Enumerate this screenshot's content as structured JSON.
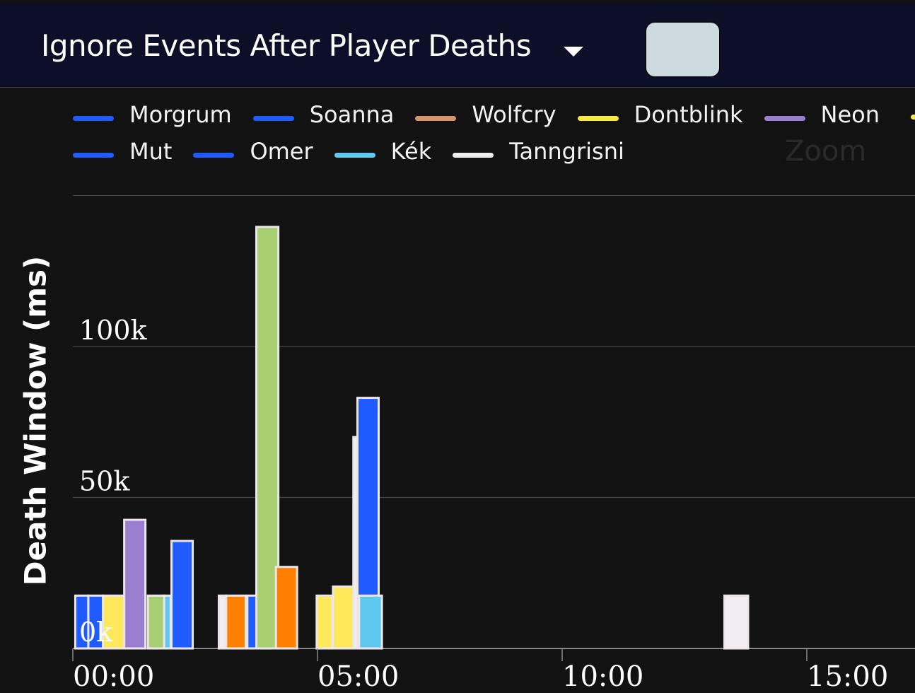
{
  "header": {
    "title": "Ignore Events After Player Deaths",
    "dropdown_icon": "caret-down-icon"
  },
  "zoom_label": "Zoom",
  "chart_data": {
    "type": "bar",
    "ylabel": "Death Window (ms)",
    "xlabel": "",
    "ylim": [
      0,
      150000
    ],
    "xlim_seconds": [
      0,
      1000
    ],
    "yticks": [
      {
        "v": 0,
        "label": "0k"
      },
      {
        "v": 50000,
        "label": "50k"
      },
      {
        "v": 100000,
        "label": "100k"
      }
    ],
    "xticks": [
      {
        "t": 0,
        "label": "00:00"
      },
      {
        "t": 300,
        "label": "05:00"
      },
      {
        "t": 600,
        "label": "10:00"
      },
      {
        "t": 900,
        "label": "15:00"
      }
    ],
    "grid": true,
    "legend": {
      "placement": "top",
      "items": [
        {
          "name": "Morgrum",
          "color": "#1f5bff"
        },
        {
          "name": "Soanna",
          "color": "#1f5bff"
        },
        {
          "name": "Wolfcry",
          "color": "#d4956a"
        },
        {
          "name": "Dontblink",
          "color": "#f5ea40"
        },
        {
          "name": "Neon",
          "color": "#9a7fd0"
        },
        {
          "name": "Mut",
          "color": "#1f5bff"
        },
        {
          "name": "Omer",
          "color": "#1f5bff"
        },
        {
          "name": "Kék",
          "color": "#5ec8f0"
        },
        {
          "name": "Tanngrisni",
          "color": "#f0eef0"
        }
      ]
    },
    "bars": [
      {
        "start": 3,
        "end": 19,
        "value": 17500,
        "color": "#1f5bff"
      },
      {
        "start": 19,
        "end": 37,
        "value": 17500,
        "color": "#1f5bff"
      },
      {
        "start": 37,
        "end": 63,
        "value": 17500,
        "color": "#fde85a"
      },
      {
        "start": 63,
        "end": 89,
        "value": 42600,
        "color": "#9a7fd0"
      },
      {
        "start": 92,
        "end": 112,
        "value": 17500,
        "color": "#a8cf72"
      },
      {
        "start": 112,
        "end": 120,
        "value": 17500,
        "color": "#5ec8f0"
      },
      {
        "start": 121,
        "end": 147,
        "value": 35600,
        "color": "#1f5bff"
      },
      {
        "start": 179,
        "end": 188,
        "value": 17500,
        "color": "#f0eef0"
      },
      {
        "start": 188,
        "end": 212,
        "value": 17500,
        "color": "#ff8000"
      },
      {
        "start": 214,
        "end": 225,
        "value": 17500,
        "color": "#1f5bff"
      },
      {
        "start": 225,
        "end": 252,
        "value": 139600,
        "color": "#a8cf72"
      },
      {
        "start": 249,
        "end": 275,
        "value": 27000,
        "color": "#ff8000"
      },
      {
        "start": 299,
        "end": 318,
        "value": 17500,
        "color": "#fde85a"
      },
      {
        "start": 319,
        "end": 346,
        "value": 20500,
        "color": "#fde85a"
      },
      {
        "start": 344,
        "end": 350,
        "value": 70000,
        "color": "#f0eef0"
      },
      {
        "start": 349,
        "end": 375,
        "value": 83000,
        "color": "#1f5bff"
      },
      {
        "start": 351,
        "end": 379,
        "value": 17500,
        "color": "#5ec8f0"
      },
      {
        "start": 799,
        "end": 828,
        "value": 17500,
        "color": "#f0eef0"
      }
    ]
  }
}
